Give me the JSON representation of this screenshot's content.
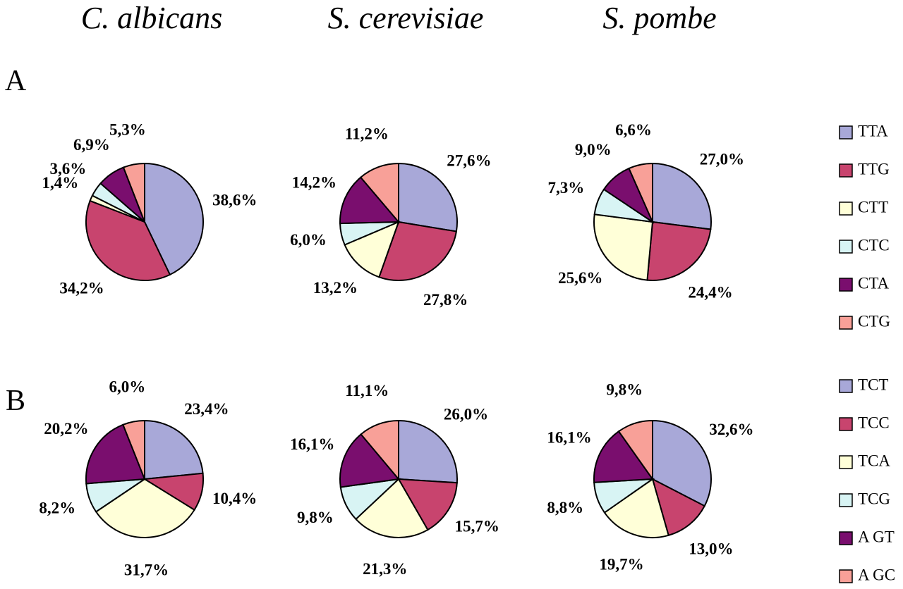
{
  "chart_data": [
    {
      "type": "pie",
      "title": "A",
      "categories": [
        "TTA",
        "TTG",
        "CTT",
        "CTC",
        "CTA",
        "CTG"
      ],
      "colors": [
        "#a8a8d8",
        "#c8446e",
        "#ffffd8",
        "#d8f4f4",
        "#7a0e6e",
        "#f8a098"
      ],
      "series": [
        {
          "name": "C. albicans",
          "values": [
            38.6,
            34.2,
            1.4,
            3.6,
            6.9,
            5.3
          ],
          "value_labels": [
            "38,6%",
            "34,2%",
            "1,4%",
            "3,6%",
            "6,9%",
            "5,3%"
          ]
        },
        {
          "name": "S. cerevisiae",
          "values": [
            27.6,
            27.8,
            13.2,
            6.0,
            14.2,
            11.2
          ],
          "value_labels": [
            "27,6%",
            "27,8%",
            "13,2%",
            "6,0%",
            "14,2%",
            "11,2%"
          ]
        },
        {
          "name": "S. pombe",
          "values": [
            27.0,
            24.4,
            25.6,
            7.3,
            9.0,
            6.6
          ],
          "value_labels": [
            "27,0%",
            "24,4%",
            "25,6%",
            "7,3%",
            "9,0%",
            "6,6%"
          ]
        }
      ]
    },
    {
      "type": "pie",
      "title": "B",
      "categories": [
        "TCT",
        "TCC",
        "TCA",
        "TCG",
        "A GT",
        "A GC"
      ],
      "colors": [
        "#a8a8d8",
        "#c8446e",
        "#ffffd8",
        "#d8f4f4",
        "#7a0e6e",
        "#f8a098"
      ],
      "series": [
        {
          "values": [
            23.4,
            10.4,
            31.7,
            8.2,
            20.2,
            6.0
          ],
          "value_labels": [
            "23,4%",
            "10,4%",
            "31,7%",
            "8,2%",
            "20,2%",
            "6,0%"
          ]
        },
        {
          "values": [
            26.0,
            15.7,
            21.3,
            9.8,
            16.1,
            11.1
          ],
          "value_labels": [
            "26,0%",
            "15,7%",
            "21,3%",
            "9,8%",
            "16,1%",
            "11,1%"
          ]
        },
        {
          "values": [
            32.6,
            13.0,
            19.7,
            8.8,
            16.1,
            9.8
          ],
          "value_labels": [
            "32,6%",
            "13,0%",
            "19,7%",
            "8,8%",
            "16,1%",
            "9,8%"
          ]
        }
      ]
    }
  ]
}
